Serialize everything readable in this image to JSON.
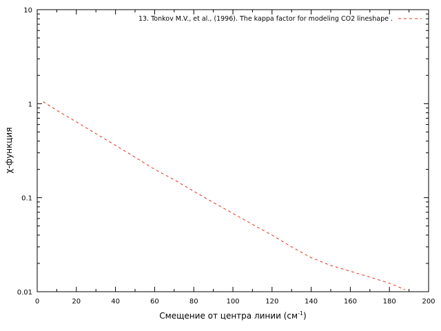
{
  "chart_data": {
    "type": "line",
    "xlabel": "Смещение от центра линии (см",
    "xlabel_sup": "-1",
    "xlabel_end": ")",
    "ylabel": "χ-функция",
    "xlim": [
      0,
      200
    ],
    "ylim": [
      0.01,
      10
    ],
    "y_scale": "log",
    "grid": false,
    "legend_position": "top-right",
    "x_ticks": [
      0,
      20,
      40,
      60,
      80,
      100,
      120,
      140,
      160,
      180,
      200
    ],
    "x_tick_labels": [
      "0",
      "20",
      "40",
      "60",
      "80",
      "100",
      "120",
      "140",
      "160",
      "180",
      "200"
    ],
    "y_ticks": [
      0.01,
      0.1,
      1,
      10
    ],
    "y_tick_labels": [
      "0.01",
      "0.1",
      "1",
      "10"
    ],
    "series": [
      {
        "name": "13. Tonkov M.V., et al., (1996). The kappa factor  for modeling CO2 lineshape .",
        "color": "#e0301e",
        "line_style": "dashed",
        "x": [
          3,
          10,
          20,
          30,
          40,
          50,
          60,
          70,
          80,
          90,
          100,
          110,
          120,
          130,
          140,
          150,
          160,
          170,
          180,
          188
        ],
        "y": [
          1.05,
          0.85,
          0.64,
          0.48,
          0.36,
          0.27,
          0.2,
          0.155,
          0.117,
          0.089,
          0.068,
          0.052,
          0.04,
          0.03,
          0.023,
          0.019,
          0.0165,
          0.0143,
          0.0123,
          0.0105
        ]
      }
    ]
  }
}
